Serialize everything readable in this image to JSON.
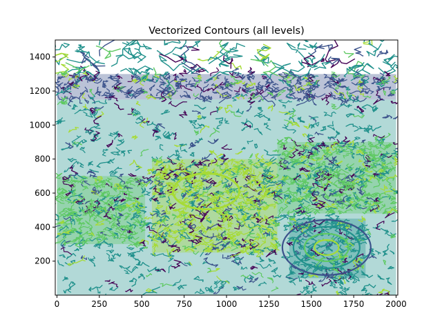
{
  "chart_data": {
    "type": "contour",
    "title": "Vectorized Contours (all levels)",
    "xlabel": "",
    "ylabel": "",
    "xlim": [
      -10,
      2010
    ],
    "ylim": [
      0,
      1500
    ],
    "x_ticks": [
      0,
      250,
      500,
      750,
      1000,
      1250,
      1500,
      1750,
      2000
    ],
    "y_ticks": [
      200,
      400,
      600,
      800,
      1000,
      1200,
      1400
    ],
    "grid": false,
    "legend": "none",
    "colormap": [
      "#440154",
      "#3b528b",
      "#21918c",
      "#5ec962",
      "#a6db35"
    ],
    "depicted_regions": [
      {
        "name": "sky-outlines",
        "x": [
          0,
          2000
        ],
        "y": [
          1300,
          1500
        ],
        "color": "#21918c"
      },
      {
        "name": "distant-city-band",
        "x": [
          0,
          2000
        ],
        "y": [
          1150,
          1300
        ],
        "color": "#3b528b"
      },
      {
        "name": "city-blocks",
        "x": [
          0,
          2000
        ],
        "y": [
          0,
          1150
        ],
        "color": "#21918c"
      },
      {
        "name": "dome-building",
        "x": [
          560,
          1300
        ],
        "y": [
          250,
          800
        ],
        "color": "#a6db35"
      },
      {
        "name": "left-building",
        "x": [
          0,
          520
        ],
        "y": [
          300,
          700
        ],
        "color": "#5ec962"
      },
      {
        "name": "roundabout",
        "x": [
          1370,
          1820
        ],
        "y": [
          100,
          450
        ],
        "color": "#21918c"
      },
      {
        "name": "right-buildings",
        "x": [
          1300,
          2000
        ],
        "y": [
          480,
          900
        ],
        "color": "#5ec962"
      }
    ]
  }
}
